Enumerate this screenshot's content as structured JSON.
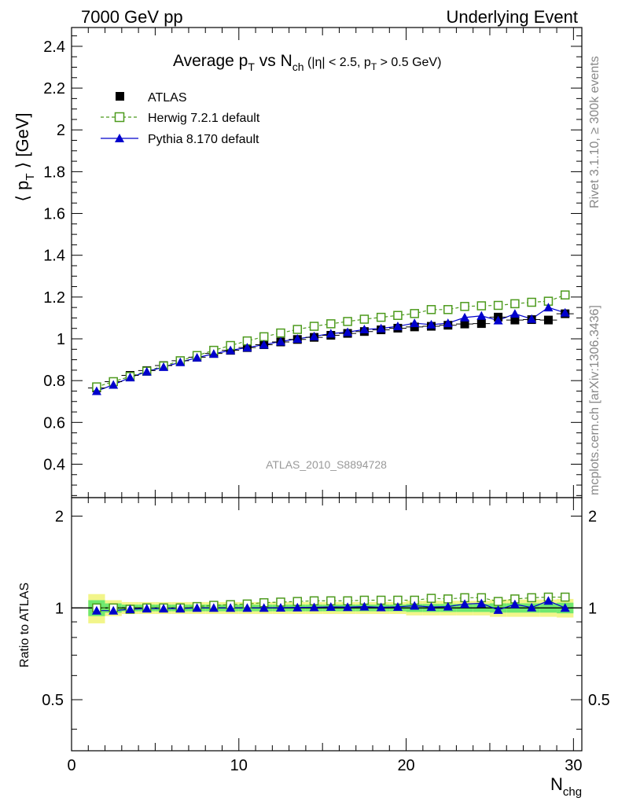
{
  "header": {
    "left": "7000 GeV pp",
    "right": "Underlying Event"
  },
  "side_labels": {
    "rivet": "Rivet 3.1.10, ≥ 300k events",
    "mcplots": "mcplots.cern.ch [arXiv:1306.3436]"
  },
  "watermark": "ATLAS_2010_S8894728",
  "colors": {
    "atlas": "#000000",
    "herwig": "#4c9a1c",
    "pythia": "#0000cc",
    "band_inner": "#6fe86f",
    "band_outer": "#f2f58a"
  },
  "chart_data": [
    {
      "type": "scatter",
      "title": "Average pT vs Nch (|η| < 2.5, pT > 0.5 GeV)",
      "ylabel": "⟨ pT ⟩ [GeV]",
      "xlim": [
        0,
        30.5
      ],
      "ylim": [
        0.24,
        2.49
      ],
      "yticks": [
        0.4,
        0.6,
        0.8,
        1.0,
        1.2,
        1.4,
        1.6,
        1.8,
        2.0,
        2.2,
        2.4
      ],
      "ytick_labels": [
        "0.4",
        "0.6",
        "0.8",
        "1",
        "1.2",
        "1.4",
        "1.6",
        "1.8",
        "2",
        "2.2",
        "2.4"
      ],
      "x": [
        1.5,
        2.5,
        3.5,
        4.5,
        5.5,
        6.5,
        7.5,
        8.5,
        9.5,
        10.5,
        11.5,
        12.5,
        13.5,
        14.5,
        15.5,
        16.5,
        17.5,
        18.5,
        19.5,
        20.5,
        21.5,
        22.5,
        23.5,
        24.5,
        25.5,
        26.5,
        27.5,
        28.5,
        29.5
      ],
      "series": [
        {
          "name": "ATLAS",
          "marker": "filled-square",
          "values": [
            0.765,
            0.795,
            0.825,
            0.848,
            0.872,
            0.895,
            0.912,
            0.93,
            0.945,
            0.958,
            0.972,
            0.985,
            0.997,
            1.007,
            1.017,
            1.026,
            1.035,
            1.043,
            1.051,
            1.057,
            1.06,
            1.065,
            1.071,
            1.073,
            1.104,
            1.09,
            1.092,
            1.09,
            1.12
          ]
        },
        {
          "name": "Herwig 7.2.1 default",
          "marker": "open-square",
          "values": [
            0.77,
            0.795,
            0.82,
            0.845,
            0.87,
            0.895,
            0.92,
            0.945,
            0.968,
            0.99,
            1.01,
            1.028,
            1.045,
            1.06,
            1.072,
            1.083,
            1.094,
            1.103,
            1.112,
            1.121,
            1.14,
            1.14,
            1.155,
            1.158,
            1.16,
            1.168,
            1.175,
            1.18,
            1.21
          ]
        },
        {
          "name": "Pythia 8.170 default",
          "marker": "filled-triangle",
          "values": [
            0.75,
            0.78,
            0.815,
            0.843,
            0.865,
            0.888,
            0.91,
            0.928,
            0.945,
            0.958,
            0.972,
            0.987,
            1.0,
            1.012,
            1.025,
            1.032,
            1.045,
            1.05,
            1.06,
            1.075,
            1.068,
            1.075,
            1.102,
            1.11,
            1.088,
            1.12,
            1.095,
            1.15,
            1.125
          ]
        }
      ]
    },
    {
      "type": "scatter",
      "ylabel": "Ratio to ATLAS",
      "xlabel": "Nchg",
      "xlim": [
        0,
        30.5
      ],
      "ylim": [
        0.34,
        2.3
      ],
      "xticks": [
        0,
        10,
        20,
        30
      ],
      "xtick_labels": [
        "0",
        "10",
        "20",
        "30"
      ],
      "yticks": [
        0.5,
        1,
        2
      ],
      "ytick_labels": [
        "0.5",
        "1",
        "2"
      ],
      "x": [
        1.5,
        2.5,
        3.5,
        4.5,
        5.5,
        6.5,
        7.5,
        8.5,
        9.5,
        10.5,
        11.5,
        12.5,
        13.5,
        14.5,
        15.5,
        16.5,
        17.5,
        18.5,
        19.5,
        20.5,
        21.5,
        22.5,
        23.5,
        24.5,
        25.5,
        26.5,
        27.5,
        28.5,
        29.5
      ],
      "series": [
        {
          "name": "Herwig 7.2.1 default",
          "marker": "open-square",
          "values": [
            1.0,
            1.0,
            0.99,
            1.0,
            1.0,
            1.0,
            1.01,
            1.02,
            1.025,
            1.03,
            1.04,
            1.045,
            1.05,
            1.055,
            1.055,
            1.055,
            1.06,
            1.06,
            1.06,
            1.06,
            1.075,
            1.07,
            1.08,
            1.08,
            1.05,
            1.07,
            1.08,
            1.085,
            1.085
          ]
        },
        {
          "name": "Pythia 8.170 default",
          "marker": "filled-triangle",
          "values": [
            0.98,
            0.98,
            0.99,
            0.995,
            0.995,
            0.995,
            1.0,
            1.0,
            1.0,
            1.0,
            1.0,
            1.002,
            1.003,
            1.005,
            1.008,
            1.006,
            1.01,
            1.005,
            1.008,
            1.017,
            1.007,
            1.01,
            1.03,
            1.035,
            0.985,
            1.028,
            1.003,
            1.055,
            1.0
          ]
        }
      ],
      "band_x_edges": [
        1,
        2,
        3,
        4,
        5,
        6,
        7,
        8,
        9,
        10,
        11,
        12,
        13,
        14,
        15,
        16,
        17,
        18,
        19,
        20,
        21,
        22,
        23,
        24,
        25,
        26,
        27,
        28,
        29,
        30
      ],
      "band_inner_halfwidth": [
        0.06,
        0.035,
        0.025,
        0.025,
        0.025,
        0.025,
        0.025,
        0.025,
        0.025,
        0.025,
        0.025,
        0.025,
        0.025,
        0.025,
        0.025,
        0.025,
        0.025,
        0.025,
        0.025,
        0.03,
        0.03,
        0.03,
        0.03,
        0.03,
        0.035,
        0.035,
        0.035,
        0.035,
        0.04
      ],
      "band_outer_halfwidth": [
        0.11,
        0.06,
        0.045,
        0.045,
        0.045,
        0.045,
        0.045,
        0.045,
        0.045,
        0.045,
        0.045,
        0.045,
        0.045,
        0.045,
        0.045,
        0.045,
        0.045,
        0.045,
        0.045,
        0.055,
        0.055,
        0.055,
        0.055,
        0.055,
        0.065,
        0.065,
        0.065,
        0.065,
        0.07
      ]
    }
  ]
}
